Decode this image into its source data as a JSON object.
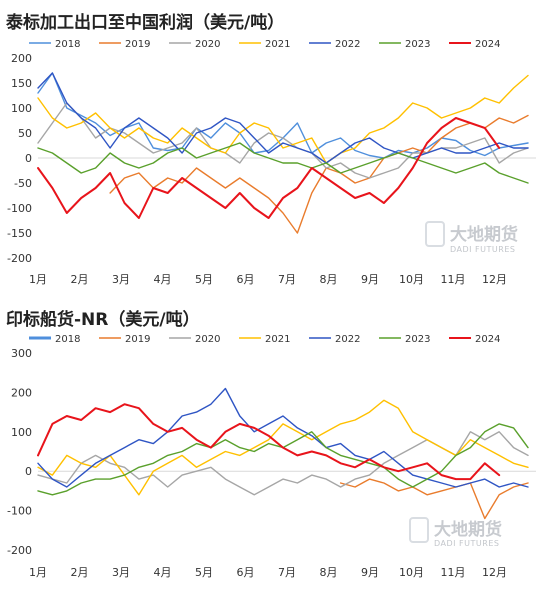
{
  "watermark": {
    "brand_cn": "大地期货",
    "brand_en": "DADI FUTURES"
  },
  "chart_data": [
    {
      "type": "line",
      "title": "泰标加工出口至中国利润（美元/吨）",
      "xlabel": "",
      "ylabel": "",
      "x_ticks": [
        "1月",
        "2月",
        "3月",
        "4月",
        "5月",
        "6月",
        "7月",
        "8月",
        "9月",
        "10月",
        "11月",
        "12月"
      ],
      "y_ticks": [
        "200",
        "150",
        "100",
        "50",
        "0",
        "-50",
        "-100",
        "-150",
        "-200"
      ],
      "ylim": [
        -200,
        200
      ],
      "grid": false,
      "legend": "top",
      "series": [
        {
          "name": "2018",
          "color": "#4f8fdc",
          "weight": 1.4,
          "values": [
            130,
            170,
            100,
            85,
            70,
            45,
            60,
            70,
            20,
            15,
            20,
            60,
            40,
            70,
            50,
            10,
            15,
            40,
            70,
            10,
            30,
            40,
            15,
            5,
            0,
            15,
            10,
            20,
            40,
            35,
            15,
            5,
            20,
            25,
            30
          ]
        },
        {
          "name": "2019",
          "color": "#e97c2d",
          "weight": 1.4,
          "values": [
            null,
            null,
            null,
            null,
            null,
            -70,
            -40,
            -30,
            -60,
            -40,
            -50,
            -20,
            -40,
            -60,
            -40,
            -60,
            -80,
            -110,
            -150,
            -70,
            -20,
            -30,
            -50,
            -40,
            0,
            10,
            20,
            10,
            40,
            60,
            70,
            60,
            80,
            70,
            85
          ]
        },
        {
          "name": "2020",
          "color": "#a6a6a6",
          "weight": 1.4,
          "values": [
            30,
            70,
            110,
            80,
            40,
            60,
            50,
            30,
            10,
            20,
            30,
            60,
            20,
            10,
            -10,
            30,
            50,
            40,
            20,
            10,
            -20,
            -10,
            -30,
            -40,
            -30,
            -20,
            10,
            10,
            20,
            20,
            30,
            40,
            -10,
            10,
            20
          ]
        },
        {
          "name": "2021",
          "color": "#ffc000",
          "weight": 1.4,
          "values": [
            120,
            80,
            60,
            70,
            90,
            60,
            40,
            60,
            40,
            30,
            60,
            40,
            20,
            10,
            50,
            70,
            60,
            20,
            30,
            40,
            -10,
            10,
            20,
            50,
            60,
            80,
            110,
            100,
            80,
            90,
            100,
            120,
            110,
            140,
            165
          ]
        },
        {
          "name": "2022",
          "color": "#2f55c4",
          "weight": 1.4,
          "values": [
            140,
            170,
            110,
            80,
            60,
            20,
            60,
            80,
            60,
            40,
            10,
            50,
            60,
            80,
            70,
            40,
            10,
            30,
            20,
            10,
            -10,
            10,
            30,
            40,
            20,
            10,
            0,
            10,
            20,
            10,
            10,
            20,
            30,
            20,
            20
          ]
        },
        {
          "name": "2023",
          "color": "#5aa02c",
          "weight": 1.4,
          "values": [
            20,
            10,
            -10,
            -30,
            -20,
            10,
            -10,
            -20,
            -10,
            10,
            20,
            0,
            10,
            20,
            30,
            10,
            0,
            -10,
            -10,
            -20,
            -10,
            -30,
            -20,
            -10,
            0,
            10,
            0,
            -10,
            -20,
            -30,
            -20,
            -10,
            -30,
            -40,
            -50
          ]
        },
        {
          "name": "2024",
          "color": "#e8141b",
          "weight": 2.0,
          "values": [
            -20,
            -60,
            -110,
            -80,
            -60,
            -30,
            -90,
            -120,
            -60,
            -70,
            -40,
            -60,
            -80,
            -100,
            -70,
            -100,
            -120,
            -80,
            -60,
            -20,
            -40,
            -60,
            -80,
            -70,
            -90,
            -60,
            -20,
            30,
            60,
            80,
            70,
            60,
            20,
            null,
            null
          ]
        }
      ]
    },
    {
      "type": "line",
      "title": "印标船货-NR（美元/吨）",
      "xlabel": "",
      "ylabel": "",
      "x_ticks": [
        "1月",
        "2月",
        "3月",
        "4月",
        "5月",
        "6月",
        "7月",
        "8月",
        "9月",
        "10月",
        "11月",
        "12月"
      ],
      "y_ticks": [
        "300",
        "200",
        "100",
        "0",
        "-100",
        "-200"
      ],
      "ylim": [
        -200,
        300
      ],
      "grid": false,
      "legend": "top",
      "series": [
        {
          "name": "2018",
          "color": "#4f8fdc",
          "weight": 3.0,
          "values": []
        },
        {
          "name": "2019",
          "color": "#e97c2d",
          "weight": 1.4,
          "values": [
            null,
            null,
            null,
            null,
            null,
            null,
            null,
            null,
            null,
            null,
            null,
            null,
            null,
            null,
            null,
            null,
            null,
            null,
            null,
            null,
            null,
            -30,
            -40,
            -20,
            -30,
            -50,
            -40,
            -60,
            -50,
            -40,
            -30,
            -120,
            -60,
            -40,
            -30
          ]
        },
        {
          "name": "2020",
          "color": "#a6a6a6",
          "weight": 1.4,
          "values": [
            -10,
            -20,
            -30,
            20,
            40,
            20,
            10,
            -20,
            -10,
            -40,
            -10,
            0,
            10,
            -20,
            -40,
            -60,
            -40,
            -20,
            -30,
            -10,
            -20,
            -40,
            -20,
            -10,
            20,
            40,
            60,
            80,
            60,
            40,
            100,
            80,
            100,
            60,
            40
          ]
        },
        {
          "name": "2021",
          "color": "#ffc000",
          "weight": 1.4,
          "values": [
            10,
            -10,
            40,
            20,
            10,
            40,
            -10,
            -60,
            0,
            20,
            40,
            10,
            30,
            50,
            40,
            60,
            80,
            120,
            100,
            80,
            100,
            120,
            130,
            150,
            180,
            160,
            100,
            80,
            60,
            40,
            80,
            60,
            40,
            20,
            10
          ]
        },
        {
          "name": "2022",
          "color": "#2f55c4",
          "weight": 1.4,
          "values": [
            20,
            -20,
            -40,
            -10,
            20,
            40,
            60,
            80,
            70,
            100,
            140,
            150,
            170,
            210,
            140,
            100,
            120,
            140,
            110,
            90,
            60,
            70,
            40,
            30,
            50,
            20,
            -10,
            -20,
            -30,
            -40,
            -30,
            -20,
            -40,
            -30,
            -40
          ]
        },
        {
          "name": "2023",
          "color": "#5aa02c",
          "weight": 1.4,
          "values": [
            -50,
            -60,
            -50,
            -30,
            -20,
            -20,
            -10,
            10,
            20,
            40,
            50,
            70,
            60,
            80,
            60,
            50,
            70,
            60,
            80,
            100,
            60,
            40,
            30,
            20,
            10,
            -20,
            -40,
            -20,
            0,
            40,
            60,
            100,
            120,
            110,
            60
          ]
        },
        {
          "name": "2024",
          "color": "#e8141b",
          "weight": 2.0,
          "values": [
            40,
            120,
            140,
            130,
            160,
            150,
            170,
            160,
            120,
            100,
            110,
            80,
            60,
            100,
            120,
            110,
            90,
            60,
            40,
            50,
            40,
            20,
            10,
            30,
            10,
            0,
            10,
            20,
            -10,
            -20,
            -20,
            20,
            -10,
            null,
            null
          ]
        }
      ]
    }
  ]
}
